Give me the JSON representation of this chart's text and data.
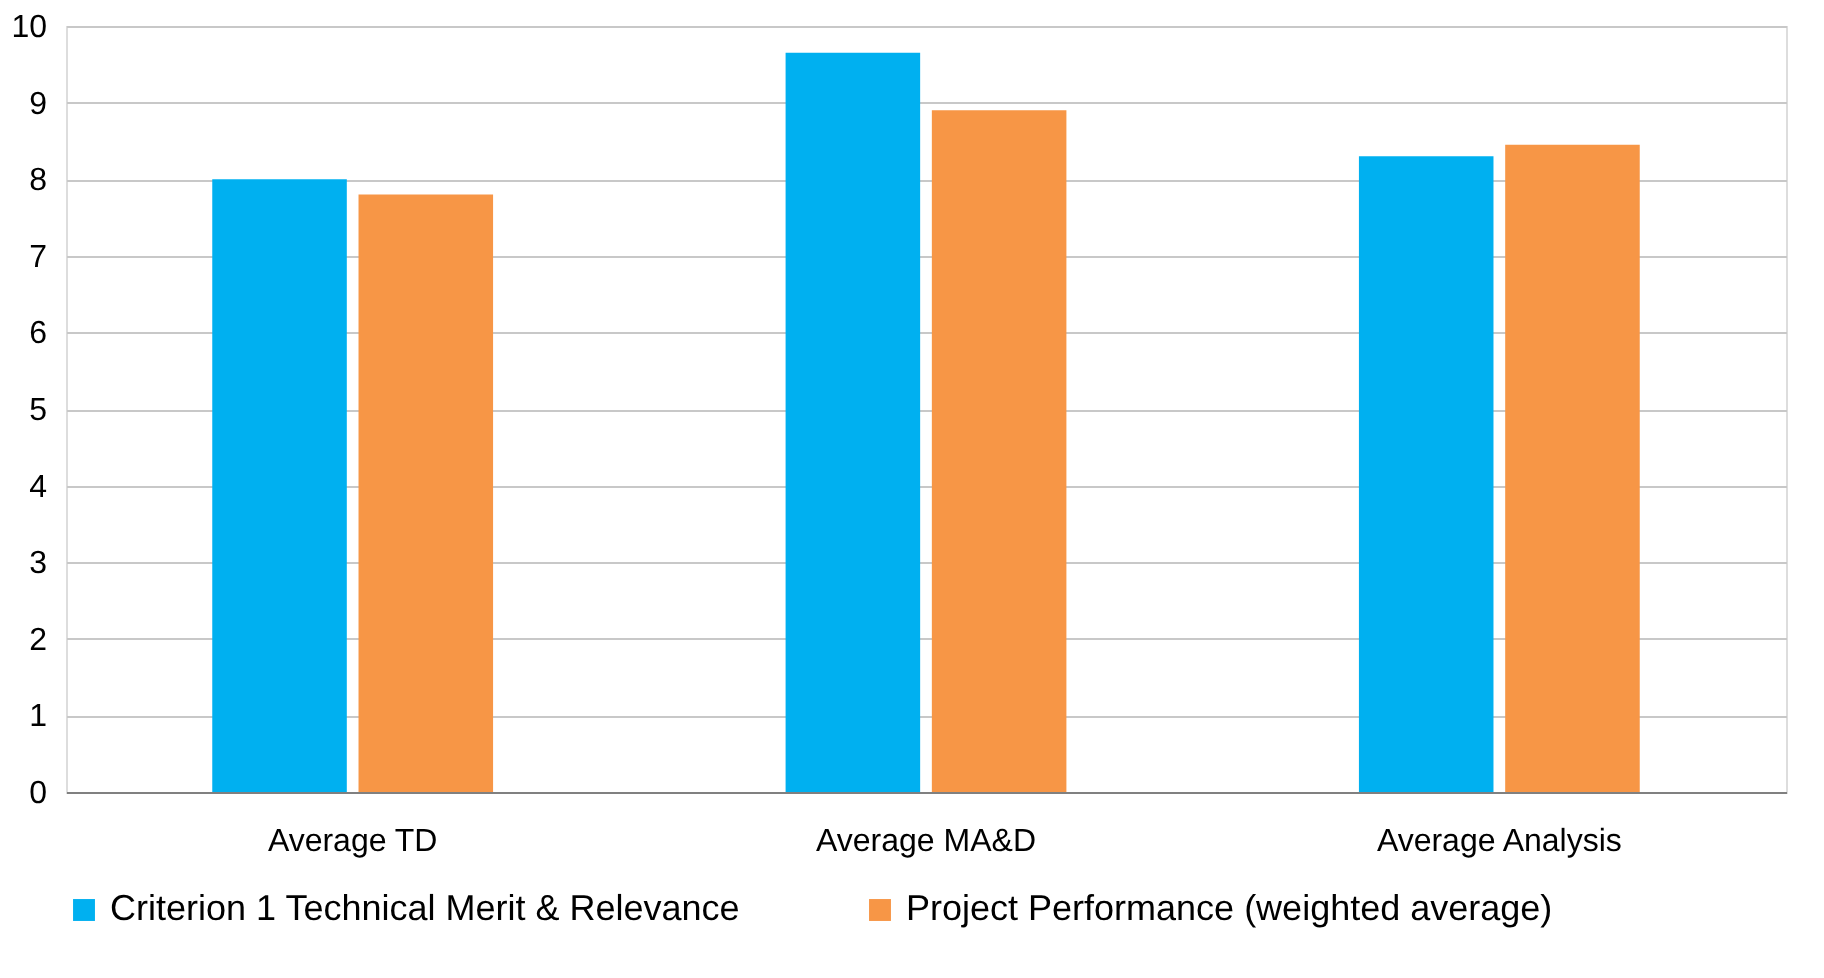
{
  "chart_data": {
    "type": "bar",
    "categories": [
      "Average TD",
      "Average MA&D",
      "Average Analysis"
    ],
    "series": [
      {
        "name": "Criterion 1 Technical Merit & Relevance",
        "color": "#00b0f0",
        "values": [
          8.0,
          9.65,
          8.3
        ]
      },
      {
        "name": "Project Performance (weighted average)",
        "color": "#f79646",
        "values": [
          7.8,
          8.9,
          8.45
        ]
      }
    ],
    "ylim": [
      0,
      10
    ],
    "yticks": [
      0,
      1,
      2,
      3,
      4,
      5,
      6,
      7,
      8,
      9,
      10
    ],
    "grid": "y",
    "legend": "bottom"
  }
}
